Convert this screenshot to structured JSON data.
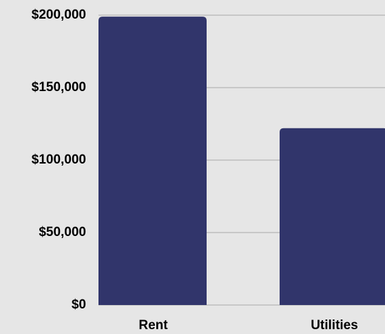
{
  "chart_data": {
    "type": "bar",
    "categories": [
      "Rent",
      "Utilities"
    ],
    "values": [
      199000,
      122000
    ],
    "color": "#31356b",
    "ylim": [
      0,
      200000
    ],
    "yticks": [
      {
        "value": 0,
        "label": "$0"
      },
      {
        "value": 50000,
        "label": "$50,000"
      },
      {
        "value": 100000,
        "label": "$100,000"
      },
      {
        "value": 150000,
        "label": "$150,000"
      },
      {
        "value": 200000,
        "label": "$200,000"
      }
    ],
    "grid": true
  }
}
